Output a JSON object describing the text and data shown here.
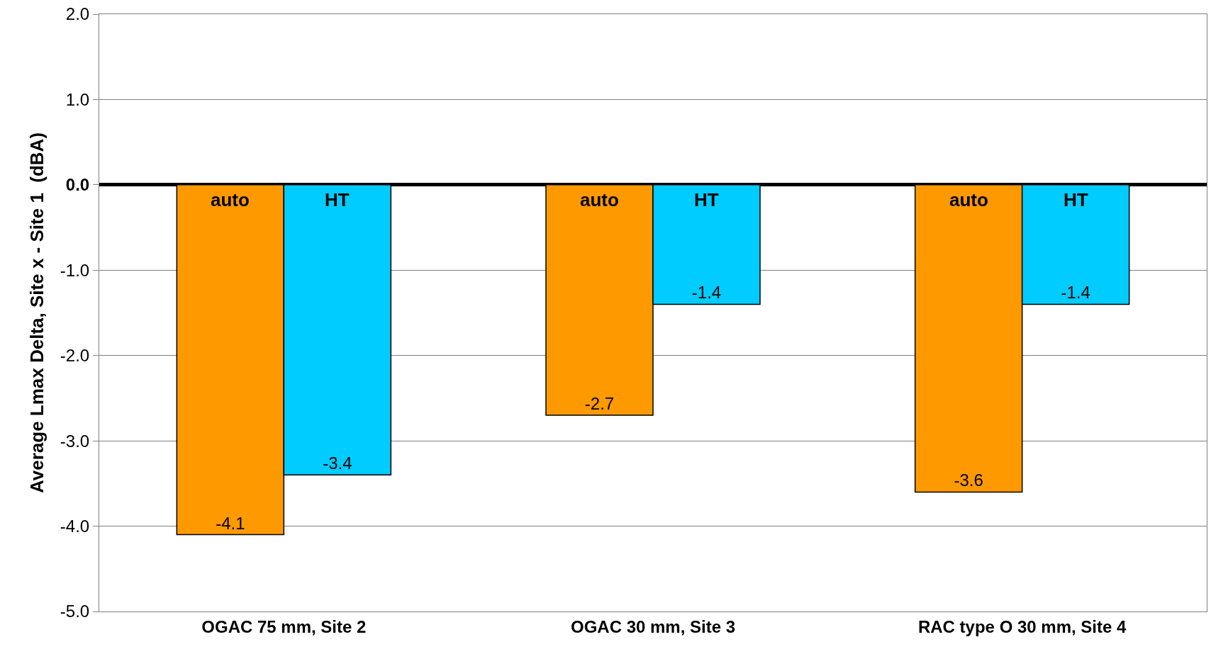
{
  "chart_data": {
    "type": "bar",
    "ylabel": "Average Lmax Delta, Site x - Site 1  (dBA)",
    "categories": [
      "OGAC 75 mm, Site 2",
      "OGAC 30 mm, Site 3",
      "RAC type O 30 mm, Site 4"
    ],
    "series": [
      {
        "name": "auto",
        "color": "#ff9900",
        "values": [
          -4.1,
          -2.7,
          -3.6
        ]
      },
      {
        "name": "HT",
        "color": "#00ccff",
        "values": [
          -3.4,
          -1.4,
          -1.4
        ]
      }
    ],
    "ylim": [
      -5,
      2
    ],
    "yticks": [
      {
        "value": -5,
        "label": "-5.0"
      },
      {
        "value": -4,
        "label": "-4.0"
      },
      {
        "value": -3,
        "label": "-3.0"
      },
      {
        "value": -2,
        "label": "-2.0"
      },
      {
        "value": -1,
        "label": "-1.0"
      },
      {
        "value": 0,
        "label": "0.0"
      },
      {
        "value": 1,
        "label": "1.0"
      },
      {
        "value": 2,
        "label": "2.0"
      }
    ],
    "grid": "y",
    "data_labels": true,
    "legend": false
  }
}
